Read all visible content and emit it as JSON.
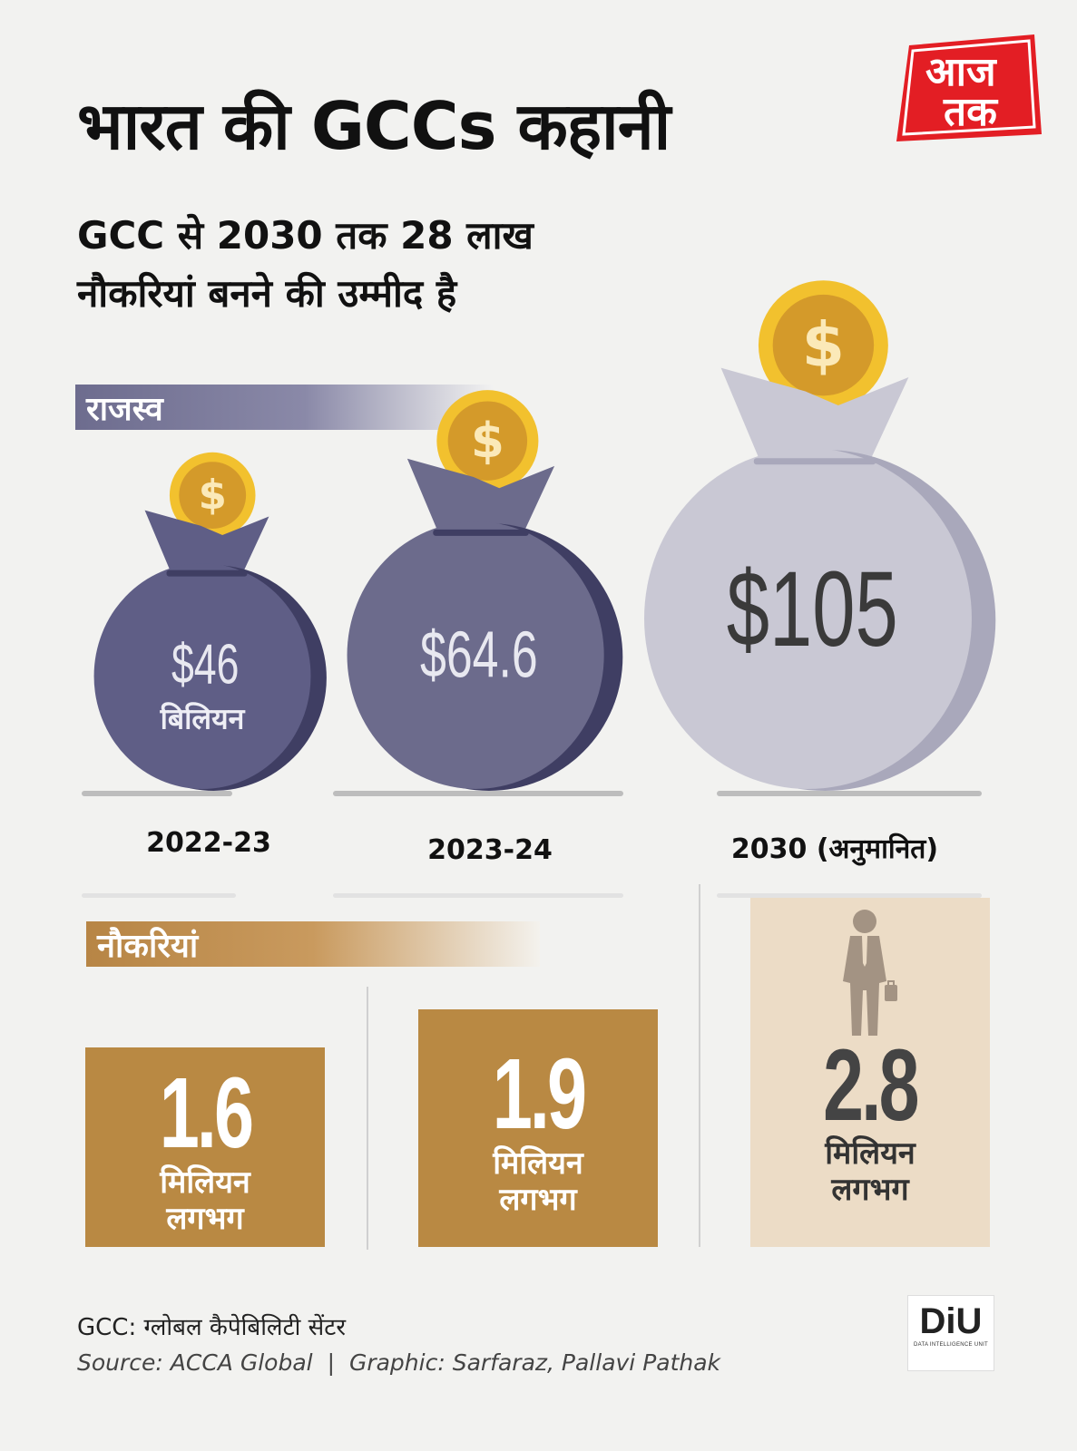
{
  "title": "भारत की GCCs कहानी",
  "subtitle": "GCC से 2030 तक 28 लाख नौकरियां बनने की उम्मीद है",
  "logo": {
    "text_top": "आज",
    "text_bottom": "तक",
    "color": "#e31e24"
  },
  "sections": {
    "revenue": "राजस्व",
    "jobs": "नौकरियां"
  },
  "chart_data": [
    {
      "type": "bar",
      "title": "राजस्व",
      "categories": [
        "2022-23",
        "2023-24",
        "2030 (अनुमानित)"
      ],
      "values": [
        46,
        64.6,
        105
      ],
      "value_labels": [
        "$46",
        "$64.6",
        "$105"
      ],
      "unit_label": "बिलियन",
      "colors": [
        "#5f5e86",
        "#6c6b8c",
        "#c9c8d4"
      ]
    },
    {
      "type": "bar",
      "title": "नौकरियां",
      "categories": [
        "2022-23",
        "2023-24",
        "2030 (अनुमानित)"
      ],
      "values": [
        1.6,
        1.9,
        2.8
      ],
      "value_labels": [
        "1.6",
        "1.9",
        "2.8"
      ],
      "unit_label": "मिलियन",
      "unit_note": "लगभग",
      "colors": [
        "#b98943",
        "#b98943",
        "#ecdcc6"
      ]
    }
  ],
  "footer": {
    "definition": "GCC: ग्लोबल कैपेबिलिटी सेंटर",
    "source": "Source: ACCA Global",
    "graphic": "Graphic:  Sarfaraz, Pallavi Pathak"
  },
  "diu": {
    "text": "DiU",
    "caption": "DATA INTELLIGENCE UNIT"
  }
}
